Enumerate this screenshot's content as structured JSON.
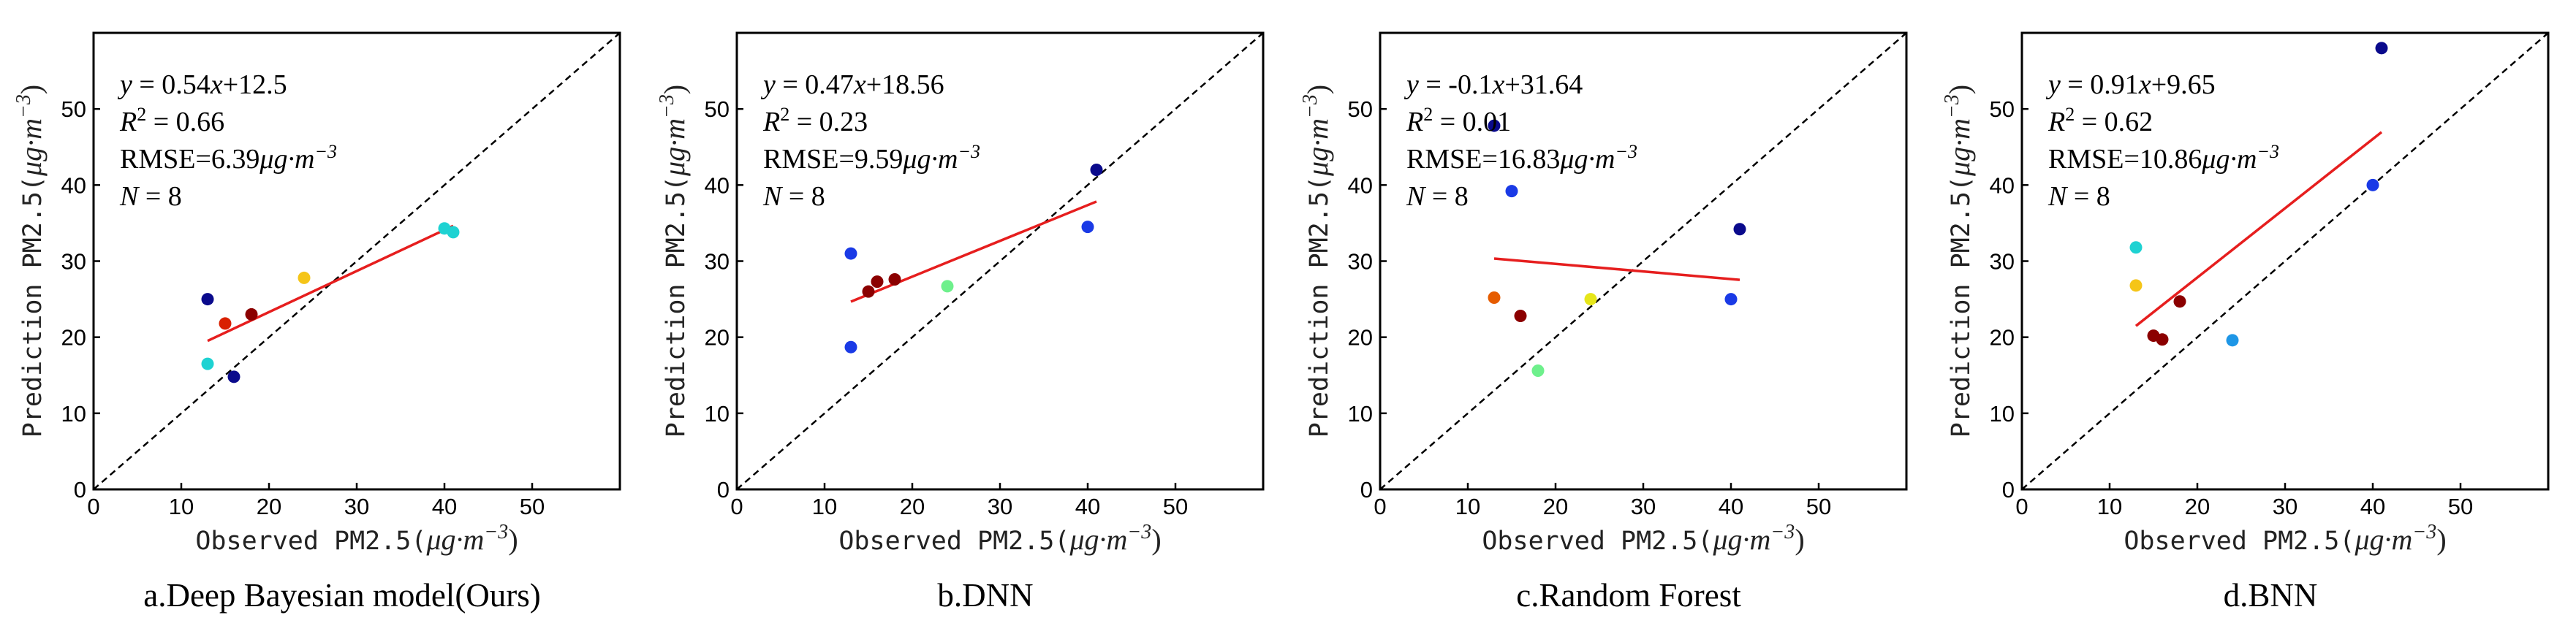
{
  "chart_data": [
    {
      "type": "scatter",
      "caption": "a.Deep Bayesian model(Ours)",
      "xlabel": "Observed PM2.5(μg·m⁻³)",
      "ylabel": "Prediction PM2.5(μg·m⁻³)",
      "xlim": [
        0,
        60
      ],
      "ylim": [
        0,
        60
      ],
      "xticks": [
        0,
        10,
        20,
        30,
        40,
        50
      ],
      "yticks": [
        0,
        10,
        20,
        30,
        40,
        50
      ],
      "annotations": {
        "equation": "y = 0.54x+12.5",
        "r2": "R² = 0.66",
        "rmse": "RMSE=6.39μg·m⁻³",
        "n": "N = 8"
      },
      "fit": {
        "slope": 0.54,
        "intercept": 12.5,
        "x_range": [
          13,
          41
        ]
      },
      "points": [
        {
          "x": 13,
          "y": 25,
          "color": "#0a0a8c"
        },
        {
          "x": 15,
          "y": 21.8,
          "color": "#d92000"
        },
        {
          "x": 18,
          "y": 23,
          "color": "#8b0000"
        },
        {
          "x": 13,
          "y": 16.5,
          "color": "#1ed2d2"
        },
        {
          "x": 16,
          "y": 14.8,
          "color": "#0a0a8c"
        },
        {
          "x": 24,
          "y": 27.8,
          "color": "#f5c518"
        },
        {
          "x": 40,
          "y": 34.3,
          "color": "#1ed2d2"
        },
        {
          "x": 41,
          "y": 33.8,
          "color": "#1ed2d2"
        }
      ]
    },
    {
      "type": "scatter",
      "caption": "b.DNN",
      "xlabel": "Observed PM2.5(μg·m⁻³)",
      "ylabel": "Prediction PM2.5(μg·m⁻³)",
      "xlim": [
        0,
        60
      ],
      "ylim": [
        0,
        60
      ],
      "xticks": [
        0,
        10,
        20,
        30,
        40,
        50
      ],
      "yticks": [
        0,
        10,
        20,
        30,
        40,
        50
      ],
      "annotations": {
        "equation": "y = 0.47x+18.56",
        "r2": "R² = 0.23",
        "rmse": "RMSE=9.59μg·m⁻³",
        "n": "N = 8"
      },
      "fit": {
        "slope": 0.47,
        "intercept": 18.56,
        "x_range": [
          13,
          41
        ]
      },
      "points": [
        {
          "x": 13,
          "y": 31,
          "color": "#1a3ae6"
        },
        {
          "x": 13,
          "y": 18.7,
          "color": "#1a3ae6"
        },
        {
          "x": 15,
          "y": 26,
          "color": "#8b0000"
        },
        {
          "x": 16,
          "y": 27.3,
          "color": "#8b0000"
        },
        {
          "x": 18,
          "y": 27.6,
          "color": "#8b0000"
        },
        {
          "x": 24,
          "y": 26.7,
          "color": "#6ef08c"
        },
        {
          "x": 40,
          "y": 34.5,
          "color": "#1a3ae6"
        },
        {
          "x": 41,
          "y": 42,
          "color": "#0a0a8c"
        }
      ]
    },
    {
      "type": "scatter",
      "caption": "c.Random Forest",
      "xlabel": "Observed PM2.5(μg·m⁻³)",
      "ylabel": "Prediction PM2.5(μg·m⁻³)",
      "xlim": [
        0,
        60
      ],
      "ylim": [
        0,
        60
      ],
      "xticks": [
        0,
        10,
        20,
        30,
        40,
        50
      ],
      "yticks": [
        0,
        10,
        20,
        30,
        40,
        50
      ],
      "annotations": {
        "equation": "y = -0.1x+31.64",
        "r2": "R² = 0.01",
        "rmse": "RMSE=16.83μg·m⁻³",
        "n": "N = 8"
      },
      "fit": {
        "slope": -0.1,
        "intercept": 31.64,
        "x_range": [
          13,
          41
        ]
      },
      "points": [
        {
          "x": 13,
          "y": 47.8,
          "color": "#0a0a8c"
        },
        {
          "x": 15,
          "y": 39.2,
          "color": "#1a3ae6"
        },
        {
          "x": 13,
          "y": 25.2,
          "color": "#e65c00"
        },
        {
          "x": 16,
          "y": 22.8,
          "color": "#8b0000"
        },
        {
          "x": 18,
          "y": 15.6,
          "color": "#6ef08c"
        },
        {
          "x": 24,
          "y": 25,
          "color": "#e6e61a"
        },
        {
          "x": 40,
          "y": 25,
          "color": "#1a3ae6"
        },
        {
          "x": 41,
          "y": 34.2,
          "color": "#0a0a8c"
        }
      ]
    },
    {
      "type": "scatter",
      "caption": "d.BNN",
      "xlabel": "Observed PM2.5(μg·m⁻³)",
      "ylabel": "Prediction PM2.5(μg·m⁻³)",
      "xlim": [
        0,
        60
      ],
      "ylim": [
        0,
        60
      ],
      "xticks": [
        0,
        10,
        20,
        30,
        40,
        50
      ],
      "yticks": [
        0,
        10,
        20,
        30,
        40,
        50
      ],
      "annotations": {
        "equation": "y = 0.91x+9.65",
        "r2": "R² = 0.62",
        "rmse": "RMSE=10.86μg·m⁻³",
        "n": "N = 8"
      },
      "fit": {
        "slope": 0.91,
        "intercept": 9.65,
        "x_range": [
          13,
          41
        ]
      },
      "points": [
        {
          "x": 13,
          "y": 31.8,
          "color": "#1ed2d2"
        },
        {
          "x": 13,
          "y": 26.8,
          "color": "#f5c518"
        },
        {
          "x": 18,
          "y": 24.7,
          "color": "#8b0000"
        },
        {
          "x": 15,
          "y": 20.2,
          "color": "#8b0000"
        },
        {
          "x": 16,
          "y": 19.7,
          "color": "#8b0000"
        },
        {
          "x": 24,
          "y": 19.6,
          "color": "#1e96e6"
        },
        {
          "x": 40,
          "y": 40,
          "color": "#1a3ae6"
        },
        {
          "x": 41,
          "y": 58,
          "color": "#0a0a8c"
        }
      ]
    }
  ]
}
